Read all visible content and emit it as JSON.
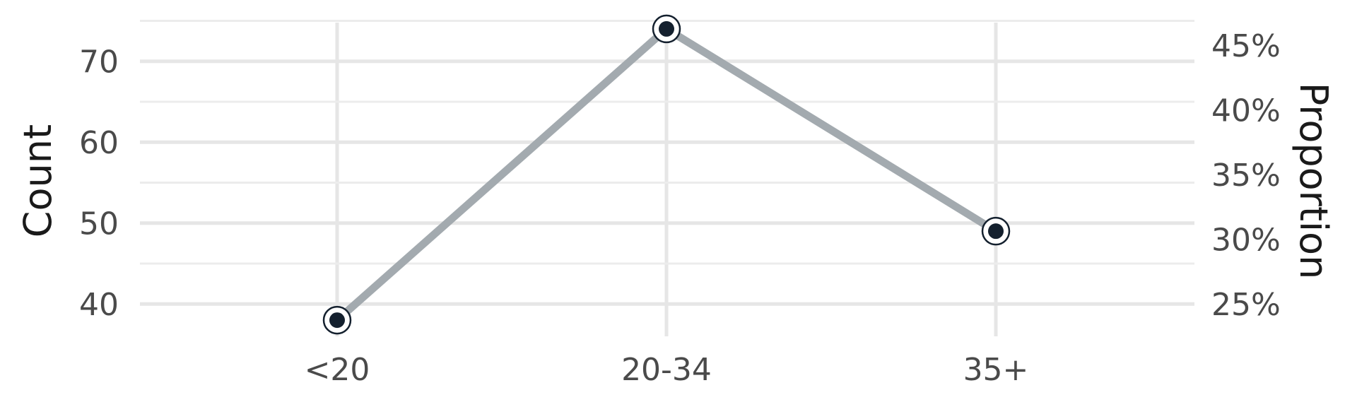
{
  "chart_data": {
    "type": "line",
    "categories": [
      "<20",
      "20-34",
      "35+"
    ],
    "series": [
      {
        "values": [
          38,
          74,
          49
        ]
      }
    ],
    "ylabel": "Count",
    "ylabel_right": "Proportion",
    "ylim": [
      36,
      76
    ],
    "yticks": [
      40,
      50,
      60,
      70
    ],
    "yticks_right": [
      "25%",
      "30%",
      "35%",
      "40%",
      "45%"
    ],
    "yticks_right_counts": [
      40,
      48,
      56,
      64,
      72
    ],
    "grid": true,
    "legend": "none",
    "colors": {
      "line": "#a3aaaf",
      "point": "#14202e",
      "ring": "#14202e"
    }
  }
}
